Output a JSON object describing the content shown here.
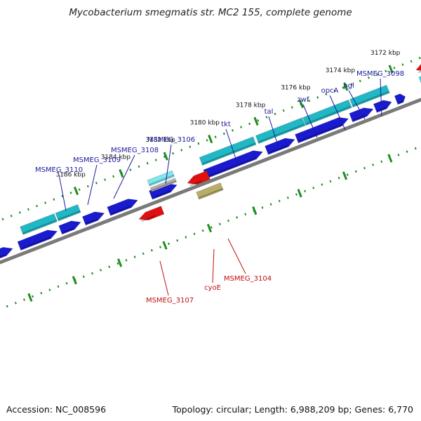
{
  "title": "Mycobacterium smegmatis str. MC2 155, complete genome",
  "footer": {
    "accession": "Accession: NC_008596",
    "summary": "Topology: circular; Length: 6,988,209 bp; Genes: 6,770"
  },
  "colors": {
    "forward_cds": "#1a1ad0",
    "forward_gene": "#20b8c4",
    "reverse_cds": "#e01010",
    "rrna": "#b8ad6a",
    "backbone": "#7a7a7a",
    "tick": "#1e8c1e",
    "forward_label": "#1a1aa0",
    "reverse_label": "#c01010"
  },
  "scale_ticks": [
    "3172 kbp",
    "3174 kbp",
    "3176 kbp",
    "3178 kbp",
    "3180 kbp",
    "3182 kbp",
    "3184 kbp",
    "3186 kbp"
  ],
  "forward_labels": [
    "MSMEG_3098",
    "pgl",
    "opcA",
    "zwf",
    "tal",
    "tkt",
    "MSMEG_3106",
    "MSMEG_3108",
    "MSMEG_3109",
    "MSMEG_3110"
  ],
  "reverse_labels": [
    "MSMEG_3104",
    "cyoE",
    "MSMEG_3107"
  ]
}
